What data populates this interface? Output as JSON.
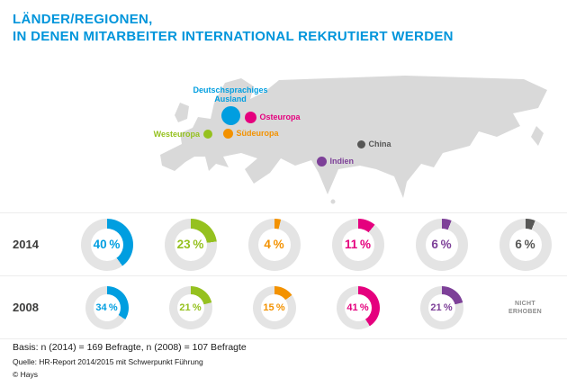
{
  "header": {
    "title_line1": "LÄNDER/REGIONEN,",
    "title_line2": "IN DENEN MITARBEITER INTERNATIONAL REKRUTIERT WERDEN"
  },
  "map": {
    "markers": [
      {
        "id": "deutschsprachiges-ausland",
        "label": "Deutschsprachiges\nAusland",
        "color": "#009EE0",
        "x": 106,
        "y": 46,
        "size": 21,
        "label_side": "above"
      },
      {
        "id": "osteuropa",
        "label": "Osteuropa",
        "color": "#E5007E",
        "x": 128,
        "y": 48,
        "size": 13,
        "label_side": "right"
      },
      {
        "id": "westeuropa",
        "label": "Westeuropa",
        "color": "#95C11F",
        "x": 81,
        "y": 67,
        "size": 10,
        "label_side": "left"
      },
      {
        "id": "suedeuropa",
        "label": "Südeuropa",
        "color": "#F39200",
        "x": 103,
        "y": 66,
        "size": 11,
        "label_side": "right"
      },
      {
        "id": "indien",
        "label": "Indien",
        "color": "#7D4098",
        "x": 207,
        "y": 97,
        "size": 11,
        "label_side": "right"
      },
      {
        "id": "china",
        "label": "China",
        "color": "#575756",
        "x": 251,
        "y": 78,
        "size": 9,
        "label_side": "right"
      }
    ]
  },
  "chart_data": {
    "type": "pie",
    "subtype": "donut-grid",
    "title": "Länder/Regionen, in denen Mitarbeiter international rekrutiert werden",
    "categories": [
      "Deutschsprachiges Ausland",
      "Westeuropa",
      "Südeuropa",
      "Osteuropa",
      "Indien",
      "China"
    ],
    "ids": [
      "deutschsprachiges-ausland",
      "westeuropa",
      "suedeuropa",
      "osteuropa",
      "indien",
      "china"
    ],
    "colors": [
      "#009EE0",
      "#95C11F",
      "#F39200",
      "#E5007E",
      "#7D4098",
      "#575756"
    ],
    "track_color": "#E4E4E4",
    "unit": "%",
    "series": [
      {
        "name": "2014",
        "values": [
          40,
          23,
          4,
          11,
          6,
          6
        ]
      },
      {
        "name": "2008",
        "values": [
          34,
          21,
          15,
          41,
          21,
          null
        ]
      }
    ],
    "null_label": "NICHT ERHOBEN"
  },
  "footer": {
    "basis": "Basis: n (2014) = 169 Befragte, n (2008) = 107 Befragte",
    "source": "Quelle: HR-Report 2014/2015 mit Schwerpunkt Führung",
    "copyright": "© Hays"
  }
}
